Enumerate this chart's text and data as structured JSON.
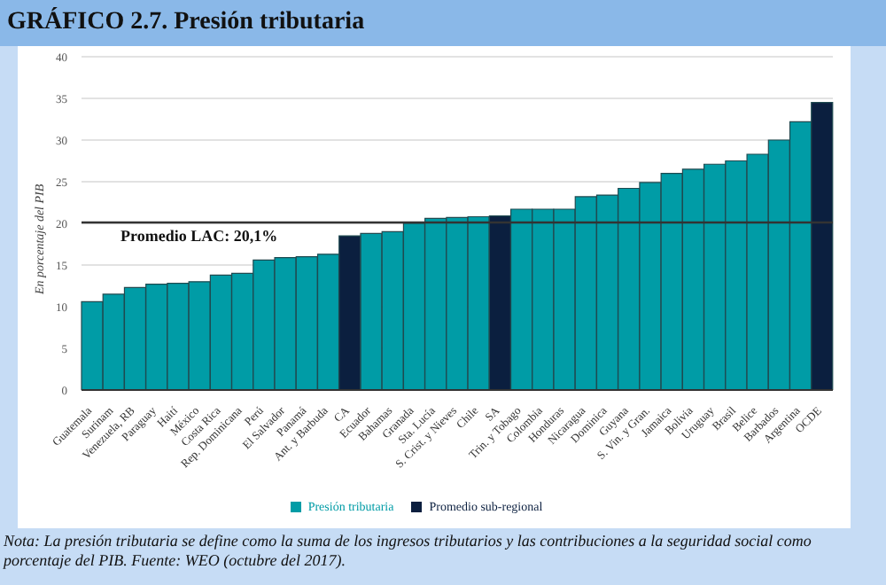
{
  "chart_data": {
    "type": "bar",
    "title": "GRÁFICO 2.7.  Presión tributaria",
    "ylabel": "En porcentaje del PIB",
    "categories": [
      "Guatemala",
      "Surinam",
      "Venezuela, RB",
      "Paraguay",
      "Haití",
      "México",
      "Costa Rica",
      "Rep. Dominicana",
      "Perú",
      "El Salvador",
      "Panamá",
      "Ant. y Barbuda",
      "CA",
      "Ecuador",
      "Bahamas",
      "Granada",
      "Sta. Lucía",
      "S. Crist. y Nieves",
      "Chile",
      "SA",
      "Trin. y Tobago",
      "Colombia",
      "Honduras",
      "Nicaragua",
      "Dominica",
      "Guyana",
      "S. Vin. y Gran.",
      "Jamaica",
      "Bolivia",
      "Uruguay",
      "Brasil",
      "Belice",
      "Barbados",
      "Argentina",
      "OCDE"
    ],
    "stacked": true,
    "series": [
      {
        "name": "Presión tributaria",
        "color": "#009ca6",
        "values": [
          10.6,
          11.5,
          12.3,
          12.7,
          12.8,
          13.0,
          13.8,
          14.0,
          15.6,
          15.9,
          16.0,
          16.3,
          null,
          18.8,
          19.0,
          20.0,
          20.6,
          20.7,
          20.8,
          null,
          21.7,
          21.7,
          21.7,
          23.2,
          23.4,
          24.2,
          24.9,
          26.0,
          26.5,
          27.1,
          27.5,
          28.3,
          30.0,
          32.2,
          null
        ]
      },
      {
        "name": "Promedio sub-regional",
        "color": "#0b1f3f",
        "values": [
          null,
          null,
          null,
          null,
          null,
          null,
          null,
          null,
          null,
          null,
          null,
          null,
          18.5,
          null,
          null,
          null,
          null,
          null,
          null,
          20.9,
          null,
          null,
          null,
          null,
          null,
          null,
          null,
          null,
          null,
          null,
          null,
          null,
          null,
          null,
          34.5
        ]
      }
    ],
    "ylim": [
      0,
      40
    ],
    "yticks": [
      0,
      5,
      10,
      15,
      20,
      25,
      30,
      35,
      40
    ],
    "grid": "y",
    "legend": "bottom",
    "ref_lines": [
      {
        "axis": "y",
        "value": 20.1,
        "label": "Promedio LAC: 20,1%",
        "color": "#333333"
      }
    ],
    "annotations": [
      "Nota: La presión tributaria se define como la suma de los ingresos tributarios y las contribuciones a la seguridad social como porcentaje del PIB.  Fuente: WEO (octubre del 2017)."
    ]
  }
}
